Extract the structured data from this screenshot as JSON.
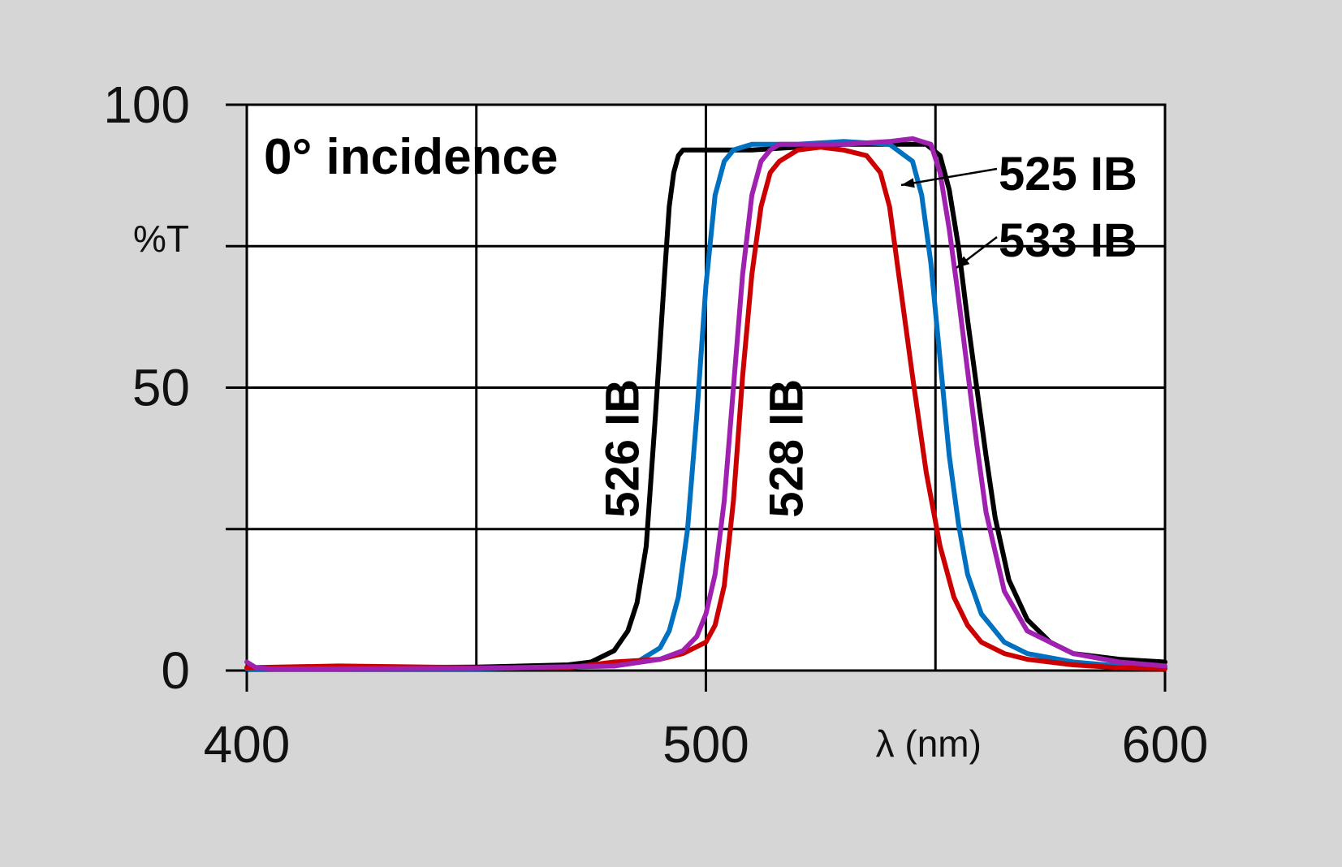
{
  "chart_data": {
    "type": "line",
    "title": "",
    "annotation": "0° incidence",
    "xlabel": "λ (nm)",
    "ylabel": "%T",
    "xlim": [
      400,
      600
    ],
    "ylim": [
      0,
      100
    ],
    "x_ticks": [
      400,
      500,
      600
    ],
    "x_tick_labels": [
      "400",
      "500",
      "600"
    ],
    "y_ticks": [
      0,
      50,
      100
    ],
    "y_tick_labels": [
      "0",
      "50",
      "100"
    ],
    "x_gridlines": [
      400,
      450,
      500,
      550,
      600
    ],
    "y_gridlines": [
      0,
      25,
      50,
      75,
      100
    ],
    "grid": true,
    "series": [
      {
        "name": "526 IB",
        "color": "#000000",
        "x": [
          400,
          420,
          450,
          470,
          475,
          480,
          483,
          485,
          487,
          489,
          491,
          492,
          493,
          494,
          495,
          497,
          500,
          510,
          520,
          530,
          540,
          548,
          551,
          553,
          555,
          557,
          559,
          561,
          563,
          566,
          570,
          575,
          580,
          590,
          600
        ],
        "y": [
          0.5,
          0.5,
          0.6,
          1.0,
          1.5,
          3.5,
          7,
          12,
          22,
          45,
          70,
          82,
          88,
          91,
          92,
          92,
          92,
          92,
          92.5,
          93,
          93,
          93,
          91,
          85,
          75,
          62,
          50,
          38,
          27,
          16,
          9,
          5,
          3,
          2,
          1.5
        ]
      },
      {
        "name": "525 IB",
        "color": "#0070c0",
        "x": [
          400,
          450,
          480,
          485,
          490,
          492,
          494,
          496,
          498,
          500,
          502,
          504,
          506,
          510,
          520,
          530,
          540,
          545,
          547,
          549,
          551,
          553,
          555,
          557,
          560,
          565,
          570,
          580,
          590,
          600
        ],
        "y": [
          0.3,
          0.3,
          0.8,
          1.5,
          4,
          7,
          13,
          25,
          45,
          68,
          84,
          90,
          92,
          93,
          93,
          93.5,
          93,
          90,
          84,
          72,
          55,
          38,
          26,
          17,
          10,
          5,
          3,
          1.5,
          0.8,
          0.5
        ]
      },
      {
        "name": "528 IB",
        "color": "#cc0000",
        "x": [
          400,
          420,
          450,
          470,
          480,
          490,
          495,
          500,
          502,
          504,
          506,
          508,
          510,
          512,
          514,
          516,
          520,
          525,
          530,
          535,
          538,
          540,
          542,
          545,
          548,
          551,
          554,
          557,
          560,
          565,
          570,
          580,
          590,
          600
        ],
        "y": [
          0.5,
          0.8,
          0.5,
          0.5,
          1.5,
          2,
          3,
          5,
          8,
          15,
          30,
          52,
          70,
          82,
          88,
          90,
          92,
          92.5,
          92,
          91,
          88,
          82,
          70,
          52,
          35,
          22,
          13,
          8,
          5,
          3,
          2,
          1,
          0.5,
          0.3
        ]
      },
      {
        "name": "533 IB",
        "color": "#a020b0",
        "x": [
          400,
          402,
          405,
          420,
          450,
          480,
          490,
          495,
          498,
          500,
          502,
          504,
          506,
          508,
          510,
          512,
          514,
          516,
          520,
          530,
          540,
          545,
          549,
          551,
          553,
          555,
          557,
          559,
          561,
          565,
          570,
          580,
          590,
          600
        ],
        "y": [
          1.5,
          0.5,
          0.3,
          0.3,
          0.4,
          0.8,
          2,
          3.5,
          6,
          10,
          17,
          30,
          50,
          70,
          84,
          90,
          92,
          93,
          93,
          93,
          93.5,
          94,
          93,
          88,
          78,
          66,
          53,
          40,
          28,
          14,
          7,
          3,
          1.5,
          0.8
        ]
      }
    ],
    "series_labels": [
      "526 IB",
      "528 IB",
      "525 IB",
      "533 IB"
    ]
  }
}
